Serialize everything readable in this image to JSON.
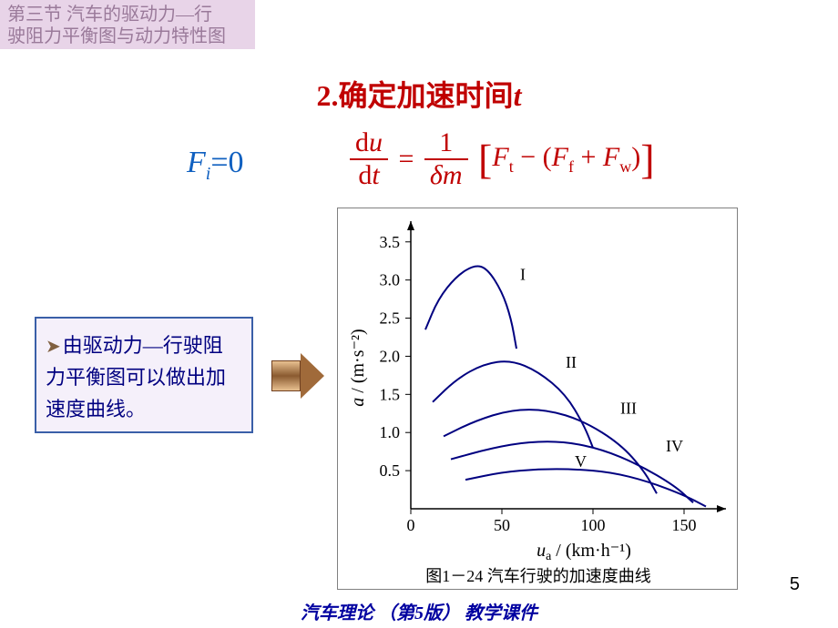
{
  "header": {
    "line1": "第三节  汽车的驱动力—行",
    "line2": "驶阻力平衡图与动力特性图"
  },
  "title": {
    "prefix": "2.确定加速时间",
    "var": "t"
  },
  "equation_left": {
    "F": "F",
    "sub": "i",
    "eq": "=0"
  },
  "equation_right": {
    "du": "d",
    "u": "u",
    "dt_d": "d",
    "dt_t": "t",
    "one": "1",
    "delta": "δ",
    "m": "m",
    "Ft": "F",
    "Ft_sub": "t",
    "minus": " − (",
    "Ff": "F",
    "Ff_sub": "f",
    "plus": " + ",
    "Fw": "F",
    "Fw_sub": "w",
    "close": ")"
  },
  "note": {
    "text": "由驱动力—行驶阻力平衡图可以做出加速度曲线。"
  },
  "chart": {
    "caption": "图1－24  汽车行驶的加速度曲线",
    "ylabel_a": "a",
    "ylabel_unit": "/ (m·s⁻²)",
    "xlabel_u": "u",
    "xlabel_sub": "a",
    "xlabel_unit": " / (km·h⁻¹)",
    "xlim": [
      0,
      170
    ],
    "ylim": [
      0,
      3.7
    ],
    "xticks": [
      0,
      50,
      100,
      150
    ],
    "yticks": [
      0.5,
      1.0,
      1.5,
      2.0,
      2.5,
      3.0,
      3.5
    ],
    "axis_color": "#000000",
    "curve_color": "#000080",
    "curve_width": 2,
    "text_color": "#000000",
    "tick_fontsize": 18,
    "label_fontsize": 20,
    "background": "#ffffff",
    "curves": [
      {
        "label": "I",
        "label_x": 60,
        "label_y": 3.0,
        "points": [
          [
            8,
            2.35
          ],
          [
            15,
            2.75
          ],
          [
            25,
            3.05
          ],
          [
            35,
            3.2
          ],
          [
            42,
            3.15
          ],
          [
            50,
            2.85
          ],
          [
            55,
            2.5
          ],
          [
            58,
            2.1
          ]
        ]
      },
      {
        "label": "II",
        "label_x": 85,
        "label_y": 1.85,
        "points": [
          [
            12,
            1.4
          ],
          [
            25,
            1.7
          ],
          [
            40,
            1.9
          ],
          [
            55,
            1.95
          ],
          [
            70,
            1.8
          ],
          [
            85,
            1.5
          ],
          [
            95,
            1.1
          ],
          [
            100,
            0.8
          ]
        ]
      },
      {
        "label": "III",
        "label_x": 115,
        "label_y": 1.25,
        "points": [
          [
            18,
            0.95
          ],
          [
            35,
            1.15
          ],
          [
            55,
            1.3
          ],
          [
            75,
            1.3
          ],
          [
            95,
            1.15
          ],
          [
            115,
            0.85
          ],
          [
            128,
            0.5
          ],
          [
            135,
            0.2
          ]
        ]
      },
      {
        "label": "V",
        "label_x": 90,
        "label_y": 0.55,
        "points": [
          [
            30,
            0.38
          ],
          [
            50,
            0.48
          ],
          [
            70,
            0.52
          ],
          [
            90,
            0.52
          ],
          [
            110,
            0.48
          ],
          [
            130,
            0.36
          ],
          [
            150,
            0.18
          ],
          [
            162,
            0.03
          ]
        ]
      },
      {
        "label": "IV",
        "label_x": 140,
        "label_y": 0.75,
        "points": [
          [
            22,
            0.65
          ],
          [
            45,
            0.8
          ],
          [
            65,
            0.88
          ],
          [
            85,
            0.88
          ],
          [
            105,
            0.78
          ],
          [
            125,
            0.58
          ],
          [
            145,
            0.3
          ],
          [
            155,
            0.08
          ]
        ]
      }
    ]
  },
  "page_number": "5",
  "footer": "汽车理论 （第5版） 教学课件"
}
